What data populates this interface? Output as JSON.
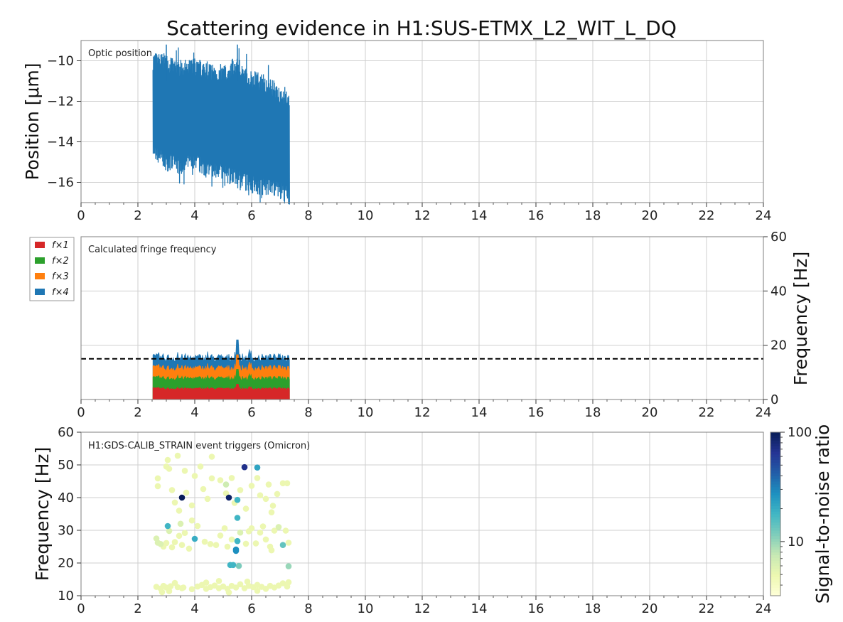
{
  "title": "Scattering evidence in H1:SUS-ETMX_L2_WIT_L_DQ",
  "colors": {
    "position": "#1f77b4",
    "f1": "#d62728",
    "f2": "#2ca02c",
    "f3": "#ff7f0e",
    "f4": "#1f77b4",
    "threshold": "#000000"
  },
  "chart_data": [
    {
      "type": "line",
      "annotation": "Optic position",
      "ylabel": "Position [μm]",
      "xlim": [
        0,
        24
      ],
      "ylim": [
        -17,
        -9
      ],
      "x_ticks": [
        "0",
        "2",
        "4",
        "6",
        "8",
        "10",
        "12",
        "14",
        "16",
        "18",
        "20",
        "22",
        "24"
      ],
      "y_ticks": [
        "−10",
        "−12",
        "−14",
        "−16"
      ],
      "y_tick_values": [
        -10,
        -12,
        -14,
        -16
      ],
      "x_range": [
        2.53,
        7.33
      ],
      "envelope": {
        "x": [
          2.53,
          3.0,
          3.5,
          4.0,
          4.5,
          5.0,
          5.5,
          6.0,
          6.5,
          7.0,
          7.33
        ],
        "upper": [
          -10.0,
          -10.1,
          -10.4,
          -10.3,
          -10.5,
          -10.6,
          -10.2,
          -10.9,
          -11.1,
          -11.6,
          -11.8
        ],
        "lower": [
          -14.4,
          -15.0,
          -15.2,
          -15.0,
          -15.4,
          -15.6,
          -15.8,
          -16.1,
          -16.2,
          -16.4,
          -16.7
        ],
        "peaks_max": [
          -9.2,
          -9.2
        ],
        "min": -16.8
      },
      "grid": true
    },
    {
      "type": "area",
      "annotation": "Calculated fringe frequency",
      "ylabel": "Frequency [Hz]",
      "yaxis_side": "right",
      "xlim": [
        0,
        24
      ],
      "ylim": [
        0,
        60
      ],
      "x_ticks": [
        "0",
        "2",
        "4",
        "6",
        "8",
        "10",
        "12",
        "14",
        "16",
        "18",
        "20",
        "22",
        "24"
      ],
      "y_ticks": [
        "0",
        "20",
        "40",
        "60"
      ],
      "y_tick_values": [
        0,
        20,
        40,
        60
      ],
      "legend_position": "outside-top-left",
      "series": [
        {
          "name": "f×1",
          "baseline": 4.0,
          "noise": 0.7
        },
        {
          "name": "f×2",
          "baseline": 7.8,
          "noise": 1.4
        },
        {
          "name": "f×3",
          "baseline": 11.5,
          "noise": 2.1
        },
        {
          "name": "f×4",
          "baseline": 15.3,
          "noise": 2.8
        }
      ],
      "x_range": [
        2.53,
        7.33
      ],
      "threshold_y": 15,
      "peak": {
        "x": 5.5,
        "y": 24
      },
      "grid": true
    },
    {
      "type": "scatter",
      "annotation": "H1:GDS-CALIB_STRAIN event triggers (Omicron)",
      "ylabel": "Frequency [Hz]",
      "xlim": [
        0,
        24
      ],
      "ylim": [
        10,
        60
      ],
      "x_ticks": [
        "0",
        "2",
        "4",
        "6",
        "8",
        "10",
        "12",
        "14",
        "16",
        "18",
        "20",
        "22",
        "24"
      ],
      "y_ticks": [
        "10",
        "20",
        "30",
        "40",
        "50",
        "60"
      ],
      "y_tick_values": [
        10,
        20,
        30,
        40,
        50,
        60
      ],
      "colorbar": {
        "label": "Signal-to-noise ratio",
        "scale": "log",
        "min": 3.2,
        "max": 100,
        "ticks": [
          "10",
          "100"
        ],
        "tick_values": [
          10,
          100
        ],
        "colormap": [
          "#ffffd9",
          "#edf8b1",
          "#c7e9b4",
          "#7fcdbb",
          "#41b6c4",
          "#1d91c0",
          "#225ea8",
          "#253494",
          "#081d58"
        ]
      },
      "points": [
        [
          3.55,
          40,
          100
        ],
        [
          5.2,
          40,
          90
        ],
        [
          5.75,
          49.3,
          70
        ],
        [
          6.2,
          49.2,
          22
        ],
        [
          3.05,
          31.3,
          18
        ],
        [
          5.5,
          39.3,
          18
        ],
        [
          5.5,
          33.8,
          18
        ],
        [
          5.5,
          26.7,
          18
        ],
        [
          5.45,
          24.1,
          28
        ],
        [
          5.45,
          23.7,
          28
        ],
        [
          4.0,
          27.4,
          20
        ],
        [
          5.25,
          19.4,
          18
        ],
        [
          5.35,
          19.4,
          18
        ],
        [
          5.55,
          19.1,
          12
        ],
        [
          7.1,
          25.5,
          14
        ],
        [
          7.3,
          19.0,
          10
        ],
        [
          5.1,
          44.0,
          7
        ],
        [
          2.65,
          27.5,
          6
        ],
        [
          2.7,
          26.2,
          6
        ],
        [
          2.8,
          25.8,
          6
        ],
        [
          2.9,
          25.0,
          5
        ],
        [
          3.0,
          26.1,
          5
        ],
        [
          3.2,
          24.8,
          5
        ],
        [
          3.3,
          26.4,
          5
        ],
        [
          3.1,
          29.8,
          6
        ],
        [
          3.45,
          28.3,
          5
        ],
        [
          3.55,
          25.5,
          5
        ],
        [
          3.65,
          29.2,
          5
        ],
        [
          3.8,
          24.4,
          5
        ],
        [
          4.1,
          31.3,
          5
        ],
        [
          4.35,
          26.5,
          5
        ],
        [
          4.55,
          25.8,
          5
        ],
        [
          4.75,
          25.5,
          5
        ],
        [
          4.9,
          28.4,
          5
        ],
        [
          5.05,
          30.6,
          5
        ],
        [
          5.15,
          25.0,
          5
        ],
        [
          5.3,
          27.2,
          5
        ],
        [
          5.6,
          29.3,
          6
        ],
        [
          5.8,
          25.9,
          5
        ],
        [
          5.9,
          29.7,
          5
        ],
        [
          6.0,
          30.6,
          5
        ],
        [
          6.15,
          26.0,
          5
        ],
        [
          6.3,
          29.3,
          5
        ],
        [
          6.5,
          27.2,
          5
        ],
        [
          6.65,
          25.0,
          5
        ],
        [
          6.8,
          29.9,
          5
        ],
        [
          6.95,
          31.0,
          6
        ],
        [
          7.2,
          29.9,
          5
        ],
        [
          7.3,
          26.2,
          5
        ],
        [
          6.4,
          31.2,
          5
        ],
        [
          6.7,
          23.9,
          5
        ],
        [
          2.7,
          45.9,
          5
        ],
        [
          3.0,
          49.5,
          5
        ],
        [
          3.1,
          48.8,
          5
        ],
        [
          3.3,
          38.5,
          5
        ],
        [
          3.45,
          36.0,
          5
        ],
        [
          3.7,
          41.5,
          5
        ],
        [
          3.9,
          37.6,
          5
        ],
        [
          4.0,
          46.6,
          5
        ],
        [
          4.3,
          42.6,
          5
        ],
        [
          4.45,
          39.6,
          5
        ],
        [
          4.6,
          45.9,
          5
        ],
        [
          4.9,
          45.3,
          5
        ],
        [
          5.1,
          41.3,
          5
        ],
        [
          5.3,
          46.0,
          5
        ],
        [
          5.4,
          38.4,
          5
        ],
        [
          5.6,
          42.3,
          5
        ],
        [
          5.8,
          36.6,
          5
        ],
        [
          6.0,
          43.6,
          5
        ],
        [
          6.2,
          46.0,
          5
        ],
        [
          6.3,
          40.7,
          5
        ],
        [
          6.5,
          39.6,
          5
        ],
        [
          6.6,
          44.0,
          5
        ],
        [
          6.75,
          37.5,
          5
        ],
        [
          6.9,
          41.1,
          5
        ],
        [
          7.1,
          44.4,
          5
        ],
        [
          7.25,
          44.4,
          5
        ],
        [
          2.7,
          43.5,
          5
        ],
        [
          3.65,
          48.2,
          5
        ],
        [
          4.2,
          49.5,
          5
        ],
        [
          4.6,
          52.5,
          5
        ],
        [
          3.05,
          51.5,
          5
        ],
        [
          3.2,
          42.3,
          5
        ],
        [
          3.5,
          32.0,
          6
        ],
        [
          3.9,
          33.0,
          5
        ],
        [
          6.7,
          35.5,
          5
        ],
        [
          3.4,
          52.8,
          5
        ],
        [
          2.65,
          12.7,
          5
        ],
        [
          2.8,
          12.2,
          5
        ],
        [
          2.9,
          13.0,
          5
        ],
        [
          3.0,
          12.5,
          5
        ],
        [
          3.15,
          12.9,
          5
        ],
        [
          3.3,
          13.9,
          5
        ],
        [
          3.4,
          12.6,
          5
        ],
        [
          3.6,
          12.5,
          5
        ],
        [
          3.9,
          12.0,
          5
        ],
        [
          4.1,
          12.8,
          5
        ],
        [
          4.25,
          13.3,
          5
        ],
        [
          4.4,
          12.1,
          5
        ],
        [
          4.55,
          12.6,
          5
        ],
        [
          4.7,
          13.1,
          5
        ],
        [
          4.85,
          12.3,
          5
        ],
        [
          5.0,
          12.8,
          5
        ],
        [
          5.15,
          12.1,
          5
        ],
        [
          5.3,
          13.0,
          5
        ],
        [
          5.45,
          12.5,
          5
        ],
        [
          5.6,
          13.5,
          5
        ],
        [
          5.75,
          12.3,
          5
        ],
        [
          5.9,
          13.0,
          5
        ],
        [
          6.05,
          12.6,
          5
        ],
        [
          6.2,
          13.3,
          5
        ],
        [
          6.35,
          12.7,
          5
        ],
        [
          6.5,
          12.1,
          5
        ],
        [
          6.65,
          13.0,
          5
        ],
        [
          6.8,
          12.5,
          5
        ],
        [
          6.95,
          13.1,
          5
        ],
        [
          7.1,
          13.8,
          5
        ],
        [
          7.25,
          12.8,
          5
        ],
        [
          4.4,
          14.0,
          5
        ],
        [
          5.2,
          11.0,
          5
        ],
        [
          3.1,
          11.4,
          5
        ],
        [
          6.2,
          11.5,
          5
        ],
        [
          7.3,
          14.1,
          5
        ],
        [
          4.85,
          14.5,
          5
        ],
        [
          3.55,
          12.3,
          5
        ],
        [
          5.85,
          14.3,
          5
        ],
        [
          2.85,
          11.1,
          5
        ]
      ],
      "grid": true
    }
  ]
}
